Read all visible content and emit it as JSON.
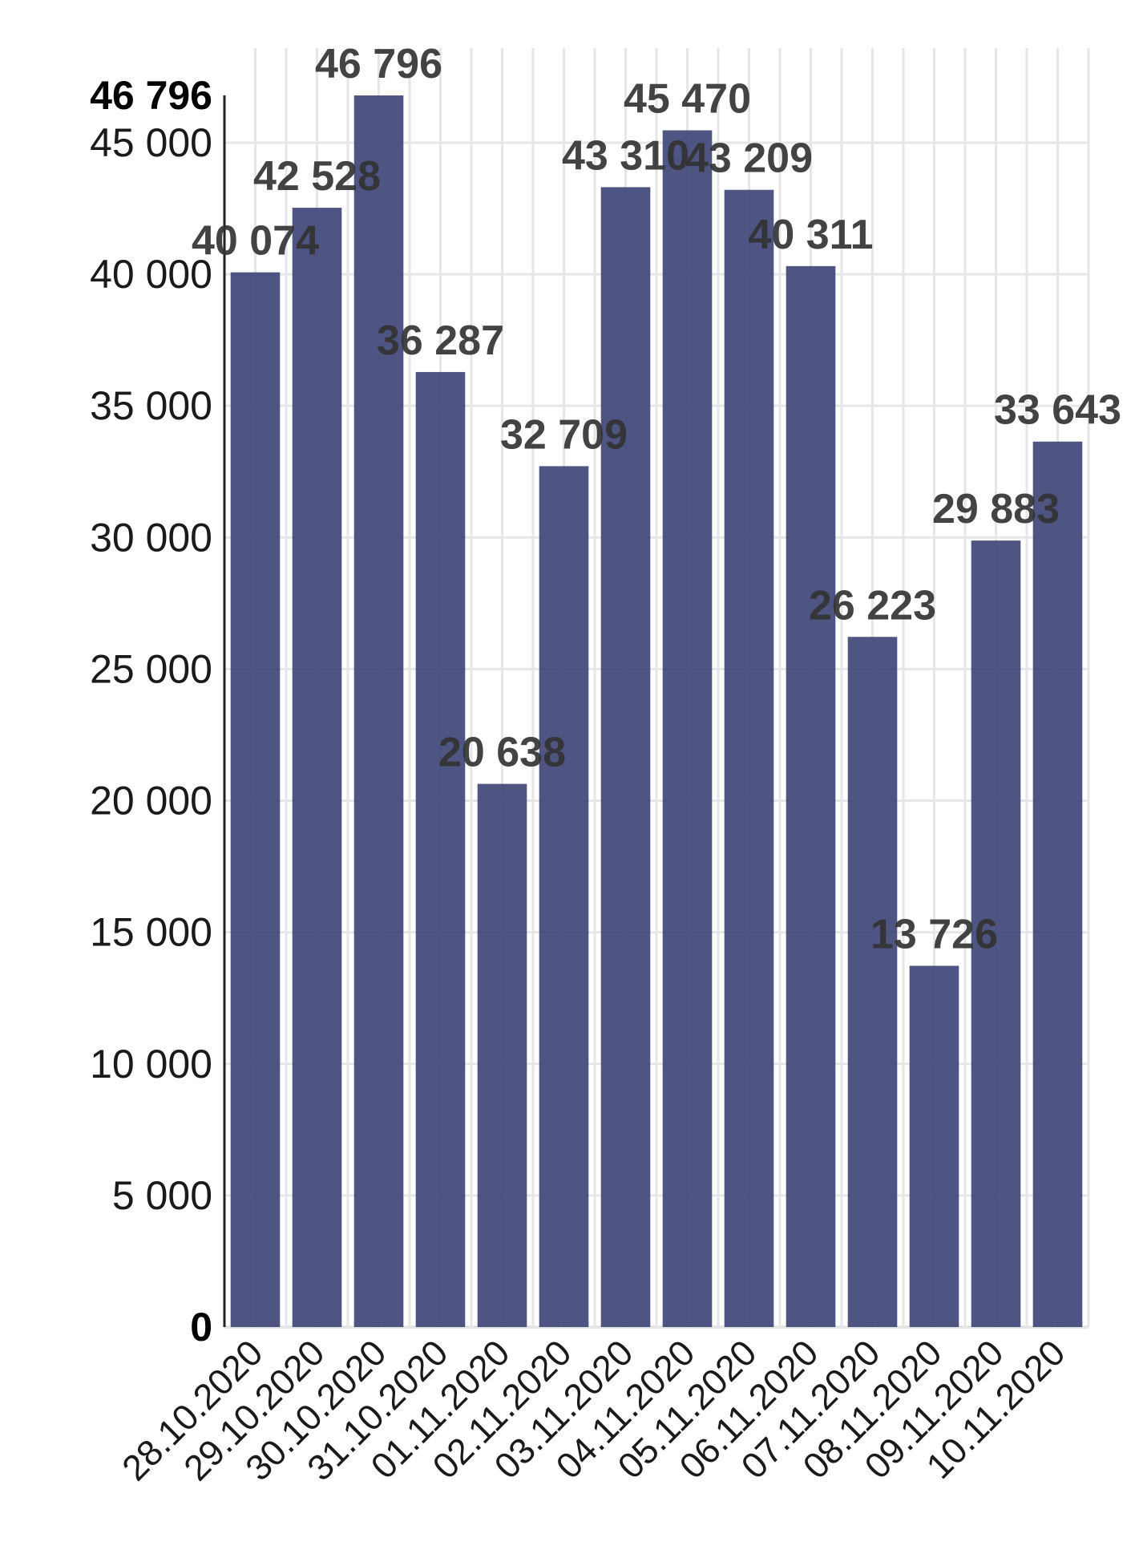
{
  "chart_data": {
    "type": "bar",
    "title": "",
    "xlabel": "",
    "ylabel": "",
    "categories": [
      "28.10.2020",
      "29.10.2020",
      "30.10.2020",
      "31.10.2020",
      "01.11.2020",
      "02.11.2020",
      "03.11.2020",
      "04.11.2020",
      "05.11.2020",
      "06.11.2020",
      "07.11.2020",
      "08.11.2020",
      "09.11.2020",
      "10.11.2020"
    ],
    "values": [
      40074,
      42528,
      46796,
      36287,
      20638,
      32709,
      43310,
      45470,
      43209,
      40311,
      26223,
      13726,
      29883,
      33643
    ],
    "data_labels": [
      "40 074",
      "42 528",
      "46 796",
      "36 287",
      "20 638",
      "32 709",
      "43 310",
      "45 470",
      "43 209",
      "40 311",
      "26 223",
      "13 726",
      "29 883",
      "33 643"
    ],
    "ylim": [
      0,
      46796
    ],
    "y_ticks": [
      0,
      5000,
      10000,
      15000,
      20000,
      25000,
      30000,
      35000,
      40000,
      45000,
      46796
    ],
    "y_tick_labels": [
      "0",
      "5 000",
      "10 000",
      "15 000",
      "20 000",
      "25 000",
      "30 000",
      "35 000",
      "40 000",
      "45 000",
      "46 796"
    ],
    "grid": true,
    "legend": "none",
    "colors": {
      "bar": "#3b4274",
      "grid": "#e6e6e6",
      "axis": "#222222",
      "label": "#333333"
    }
  }
}
